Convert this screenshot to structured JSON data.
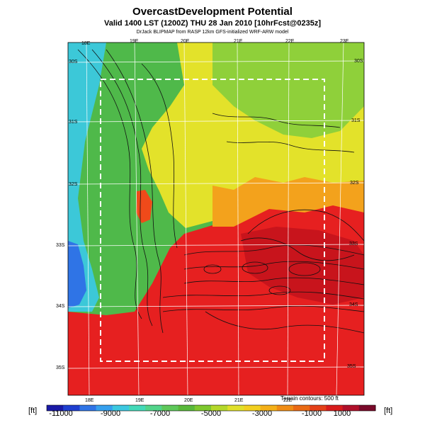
{
  "header": {
    "title": "OvercastDevelopment Potential",
    "valid_line": "Valid 1400 LST (1200Z) THU 28 Jan 2010 [10hrFcst@0235z]",
    "credit_line": "DrJack BLIPMAP from RASP 12km GFS-initialized WRF-ARW model"
  },
  "map": {
    "lon_labels_top": [
      "18E",
      "19E",
      "20E",
      "21E",
      "22E",
      "23E"
    ],
    "lon_labels_bottom": [
      "18E",
      "19E",
      "20E",
      "21E",
      "22E"
    ],
    "lat_labels_left": [
      "30S",
      "31S",
      "32S",
      "33S",
      "34S",
      "35S"
    ],
    "lat_labels_right": [
      "30S",
      "31S",
      "32S",
      "33S",
      "34S",
      "35S"
    ],
    "terrain_note": "Terrain contours: 500 ft",
    "background_green": "#4db84d",
    "background_red": "#e82020"
  },
  "colorbar": {
    "unit_left": "[ft]",
    "unit_right": "[ft]",
    "tick_labels": [
      "-11000",
      "-9000",
      "-7000",
      "-5000",
      "-3000",
      "-1000",
      "1000"
    ],
    "colors": [
      "#1a1aa6",
      "#1f3fd0",
      "#2f74e6",
      "#36a0ee",
      "#3cc8e0",
      "#43d9b8",
      "#52d48a",
      "#5ec85a",
      "#58b83a",
      "#7ec82e",
      "#b4d82a",
      "#e0e02a",
      "#f2d020",
      "#f4b018",
      "#f08c14",
      "#ea6a14",
      "#e44018",
      "#d81c1c",
      "#b0102a",
      "#7a0a2a"
    ]
  }
}
